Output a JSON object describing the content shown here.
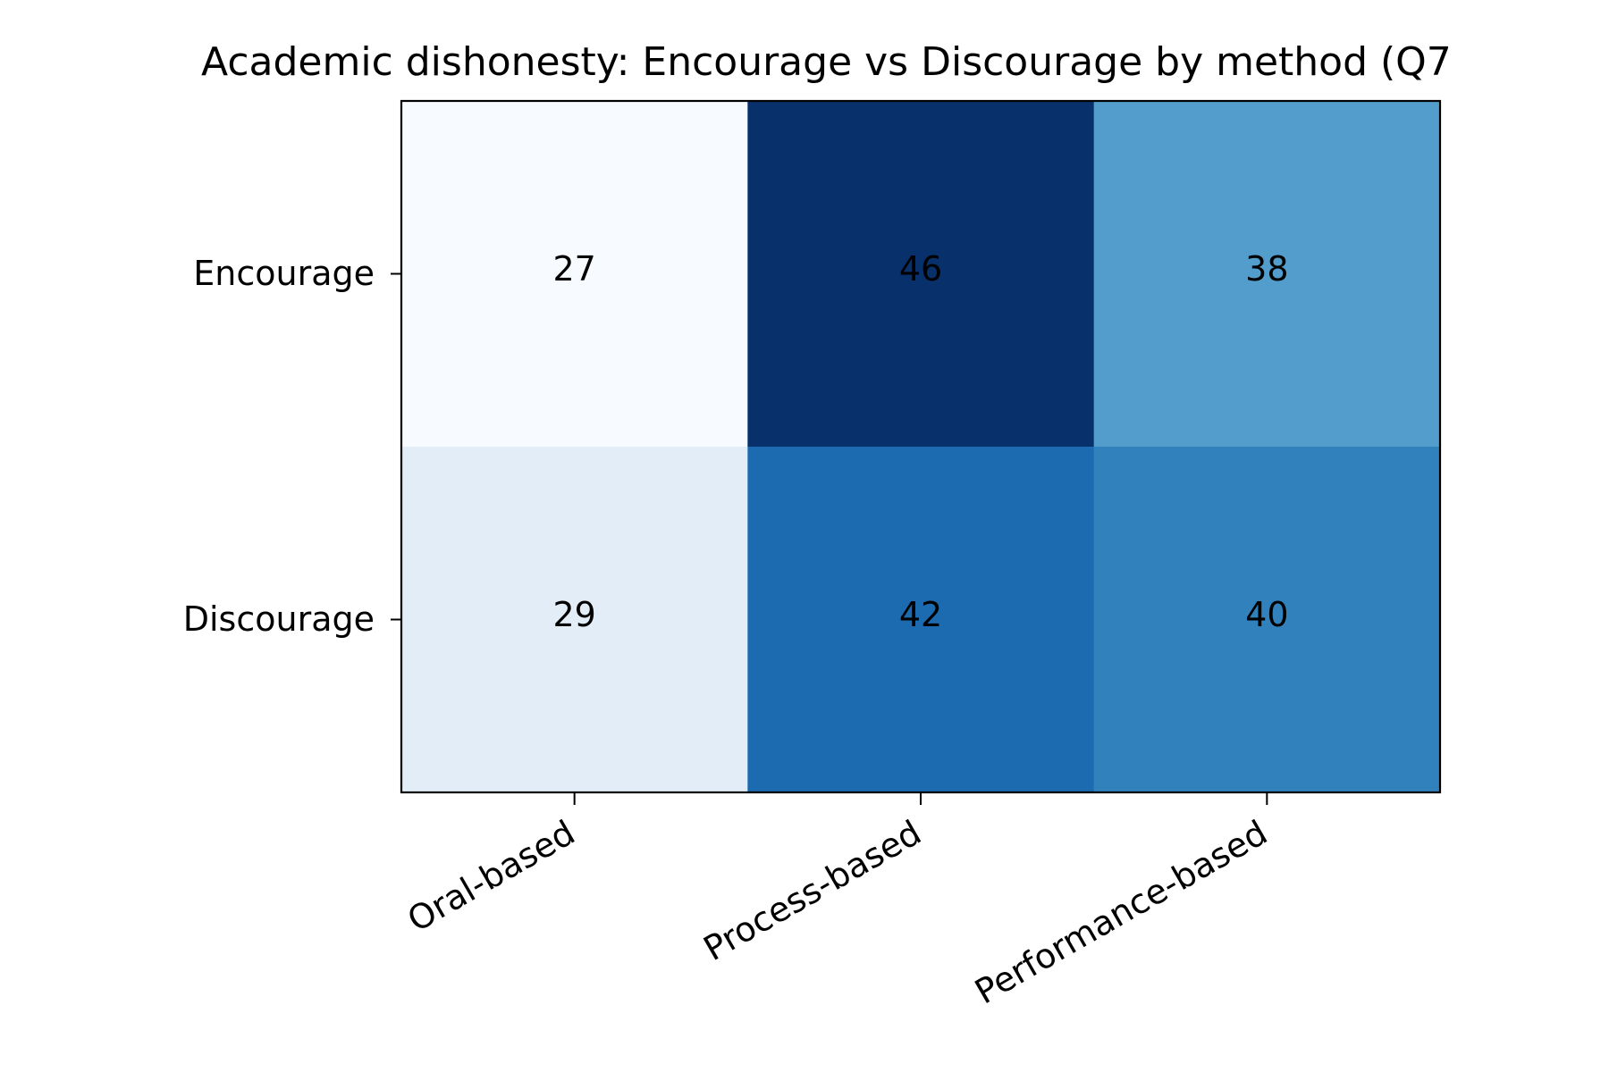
{
  "chart_data": {
    "type": "heatmap",
    "title": "Academic dishonesty: Encourage vs Discourage by method (Q7",
    "xlabel": "",
    "ylabel": "",
    "x_categories": [
      "Oral-based",
      "Process-based",
      "Performance-based"
    ],
    "y_categories": [
      "Encourage",
      "Discourage"
    ],
    "values": [
      [
        27,
        46,
        38
      ],
      [
        29,
        42,
        40
      ]
    ],
    "colormap": "Blues",
    "color_range": [
      27,
      46
    ],
    "cell_colors": [
      [
        "#f7fbff",
        "#08306b",
        "#529dcc"
      ],
      [
        "#e2edf8",
        "#1c6aaf",
        "#3181bd"
      ]
    ],
    "annotations_shown": true,
    "grid": false,
    "legend": "none"
  }
}
